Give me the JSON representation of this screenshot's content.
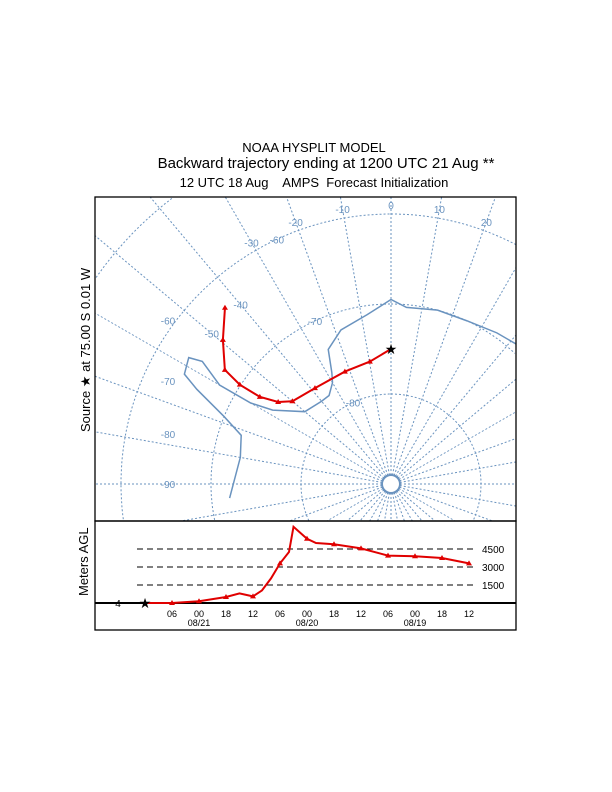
{
  "title": "NOAA HYSPLIT MODEL",
  "subtitle": "Backward trajectory ending at 1200 UTC 21 Aug **",
  "subtitle2": "12 UTC 18 Aug    AMPS  Forecast Initialization",
  "colors": {
    "trajectory": "#e00000",
    "map": "#6a93bf",
    "frame": "#000000"
  },
  "chart_data": [
    {
      "type": "line",
      "name_panel": "map",
      "projection": "south polar stereographic",
      "source_label": "Source ★ at   75.00 S    0.01 W",
      "latitude_labels": [
        "-60",
        "-70",
        "-80",
        "-50",
        "-40",
        "-50",
        "-60",
        "-70",
        "-80",
        "-90"
      ],
      "lat_circles": [
        -50,
        -60,
        -70,
        -80
      ],
      "lat_circle_labels": [
        {
          "lat": -60,
          "text": "-60"
        },
        {
          "lat": -70,
          "text": "-70"
        },
        {
          "lat": -80,
          "text": "-80"
        }
      ],
      "meridian_labels": [
        {
          "text": "-90",
          "lon": -90
        },
        {
          "text": "-80",
          "lon": -80
        },
        {
          "text": "-70",
          "lon": -70
        },
        {
          "text": "-60",
          "lon": -60
        },
        {
          "text": "-50",
          "lon": -50
        },
        {
          "text": "-40",
          "lon": -40
        },
        {
          "text": "-30",
          "lon": -30
        },
        {
          "text": "-20",
          "lon": -20
        },
        {
          "text": "-10",
          "lon": -10
        },
        {
          "text": "0",
          "lon": 0
        },
        {
          "text": "10",
          "lon": 10
        },
        {
          "text": "20",
          "lon": 20
        },
        {
          "text": "30",
          "lon": 30
        }
      ],
      "trajectory": [
        {
          "lat": -75.0,
          "lon": 0.0
        },
        {
          "lat": -76.2,
          "lon": -9.8
        },
        {
          "lat": -76.5,
          "lon": -22.3
        },
        {
          "lat": -76.4,
          "lon": -38.4
        },
        {
          "lat": -75.7,
          "lon": -50.0
        },
        {
          "lat": -74.5,
          "lon": -54.0
        },
        {
          "lat": -72.5,
          "lon": -56.4
        },
        {
          "lat": -69.9,
          "lon": -56.7
        },
        {
          "lat": -67.6,
          "lon": -55.5
        },
        {
          "lat": -65.4,
          "lon": -49.4
        },
        {
          "lat": -63.1,
          "lon": -43.3
        }
      ]
    },
    {
      "type": "line",
      "ylabel": "Meters AGL",
      "ylim": [
        0,
        6500
      ],
      "y_ticks": [
        {
          "v": 1500,
          "text": "1500"
        },
        {
          "v": 3000,
          "text": "3000"
        },
        {
          "v": 4500,
          "text": "4500"
        }
      ],
      "x_ticks": [
        "06",
        "00",
        "18",
        "12",
        "06",
        "00",
        "18",
        "12",
        "06",
        "00",
        "18",
        "12"
      ],
      "x_tick_hours_back": [
        6,
        12,
        18,
        24,
        30,
        36,
        42,
        48,
        54,
        60,
        66,
        72
      ],
      "date_labels": [
        {
          "text": "08/21",
          "hours_back": 12
        },
        {
          "text": "08/20",
          "hours_back": 36
        },
        {
          "text": "08/19",
          "hours_back": 60
        }
      ],
      "start_marker": "4",
      "series": [
        {
          "hours_back": [
            0,
            6,
            12,
            18,
            21,
            24,
            26,
            28,
            30,
            32,
            33,
            36,
            38,
            42,
            48,
            54,
            60,
            66,
            72
          ],
          "height_m": [
            0,
            0,
            150,
            500,
            800,
            550,
            1050,
            2050,
            3300,
            4250,
            6350,
            5350,
            5000,
            4900,
            4550,
            3950,
            3900,
            3750,
            3300
          ]
        }
      ]
    }
  ]
}
